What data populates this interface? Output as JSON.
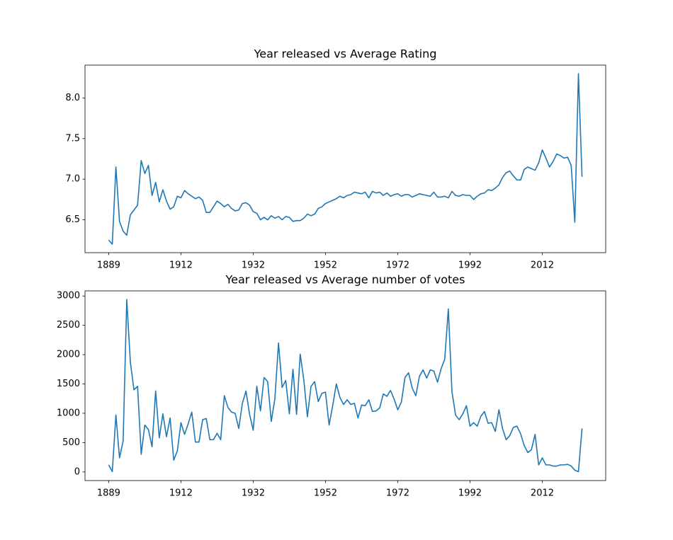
{
  "chart_data": [
    {
      "type": "line",
      "title": "Year released vs Average Rating",
      "categories": [
        "1889",
        null,
        null,
        null,
        null,
        null,
        null,
        null,
        null,
        null,
        null,
        null,
        null,
        null,
        null,
        null,
        null,
        null,
        null,
        null,
        "1912",
        null,
        null,
        null,
        null,
        null,
        null,
        null,
        null,
        null,
        null,
        null,
        null,
        null,
        null,
        null,
        null,
        null,
        null,
        null,
        "1932",
        null,
        null,
        null,
        null,
        null,
        null,
        null,
        null,
        null,
        null,
        null,
        null,
        null,
        null,
        null,
        null,
        null,
        null,
        null,
        "1952",
        null,
        null,
        null,
        null,
        null,
        null,
        null,
        null,
        null,
        null,
        null,
        null,
        null,
        null,
        null,
        null,
        null,
        null,
        null,
        "1972",
        null,
        null,
        null,
        null,
        null,
        null,
        null,
        null,
        null,
        null,
        null,
        null,
        null,
        null,
        null,
        null,
        null,
        null,
        null,
        "1992",
        null,
        null,
        null,
        null,
        null,
        null,
        null,
        null,
        null,
        null,
        null,
        null,
        null,
        null,
        null,
        null,
        null,
        null,
        null,
        "2012",
        null,
        null,
        null,
        null,
        null,
        null,
        null,
        null,
        null,
        null,
        null
      ],
      "values": [
        6.25,
        6.2,
        7.15,
        6.48,
        6.36,
        6.31,
        6.56,
        6.62,
        6.68,
        7.23,
        7.07,
        7.17,
        6.8,
        6.96,
        6.72,
        6.87,
        6.73,
        6.63,
        6.66,
        6.79,
        6.77,
        6.86,
        6.82,
        6.79,
        6.76,
        6.78,
        6.74,
        6.59,
        6.59,
        6.66,
        6.73,
        6.7,
        6.66,
        6.69,
        6.64,
        6.61,
        6.62,
        6.7,
        6.71,
        6.68,
        6.6,
        6.58,
        6.5,
        6.53,
        6.5,
        6.55,
        6.52,
        6.54,
        6.5,
        6.54,
        6.53,
        6.48,
        6.49,
        6.49,
        6.52,
        6.57,
        6.55,
        6.57,
        6.64,
        6.66,
        6.7,
        6.72,
        6.74,
        6.76,
        6.79,
        6.77,
        6.8,
        6.81,
        6.84,
        6.83,
        6.82,
        6.84,
        6.77,
        6.85,
        6.83,
        6.84,
        6.8,
        6.83,
        6.79,
        6.81,
        6.82,
        6.79,
        6.81,
        6.81,
        6.78,
        6.8,
        6.82,
        6.81,
        6.8,
        6.79,
        6.84,
        6.78,
        6.78,
        6.79,
        6.77,
        6.85,
        6.8,
        6.79,
        6.81,
        6.8,
        6.8,
        6.75,
        6.79,
        6.82,
        6.83,
        6.87,
        6.86,
        6.89,
        6.93,
        7.02,
        7.08,
        7.1,
        7.04,
        6.99,
        6.99,
        7.12,
        7.15,
        7.13,
        7.11,
        7.2,
        7.36,
        7.26,
        7.15,
        7.22,
        7.31,
        7.29,
        7.26,
        7.27,
        7.17,
        6.47,
        8.3,
        7.03
      ],
      "color": "#1f77b4",
      "ylim": [
        6.095,
        8.405
      ],
      "yticks": [
        6.5,
        {
          "value": 7,
          "label": "7.0"
        },
        7.5,
        {
          "value": 8,
          "label": "8.0"
        }
      ]
    },
    {
      "type": "line",
      "title": "Year released vs Average number of votes",
      "categories": [
        "1889",
        null,
        null,
        null,
        null,
        null,
        null,
        null,
        null,
        null,
        null,
        null,
        null,
        null,
        null,
        null,
        null,
        null,
        null,
        null,
        "1912",
        null,
        null,
        null,
        null,
        null,
        null,
        null,
        null,
        null,
        null,
        null,
        null,
        null,
        null,
        null,
        null,
        null,
        null,
        null,
        "1932",
        null,
        null,
        null,
        null,
        null,
        null,
        null,
        null,
        null,
        null,
        null,
        null,
        null,
        null,
        null,
        null,
        null,
        null,
        null,
        "1952",
        null,
        null,
        null,
        null,
        null,
        null,
        null,
        null,
        null,
        null,
        null,
        null,
        null,
        null,
        null,
        null,
        null,
        null,
        null,
        "1972",
        null,
        null,
        null,
        null,
        null,
        null,
        null,
        null,
        null,
        null,
        null,
        null,
        null,
        null,
        null,
        null,
        null,
        null,
        null,
        "1992",
        null,
        null,
        null,
        null,
        null,
        null,
        null,
        null,
        null,
        null,
        null,
        null,
        null,
        null,
        null,
        null,
        null,
        null,
        null,
        "2012",
        null,
        null,
        null,
        null,
        null,
        null,
        null,
        null,
        null,
        null,
        null
      ],
      "values": [
        120,
        5,
        970,
        240,
        530,
        2940,
        1870,
        1400,
        1460,
        300,
        800,
        720,
        430,
        1380,
        580,
        990,
        600,
        920,
        200,
        360,
        840,
        640,
        820,
        1020,
        510,
        510,
        890,
        910,
        550,
        550,
        660,
        550,
        1300,
        1100,
        1020,
        1000,
        740,
        1170,
        1380,
        980,
        710,
        1460,
        1040,
        1610,
        1540,
        860,
        1250,
        2200,
        1440,
        1560,
        990,
        1750,
        980,
        2010,
        1570,
        940,
        1460,
        1540,
        1200,
        1340,
        1360,
        800,
        1130,
        1500,
        1270,
        1150,
        1230,
        1150,
        1170,
        920,
        1140,
        1130,
        1230,
        1030,
        1040,
        1090,
        1330,
        1290,
        1390,
        1240,
        1060,
        1190,
        1610,
        1690,
        1430,
        1300,
        1630,
        1740,
        1600,
        1740,
        1720,
        1530,
        1760,
        1920,
        2780,
        1370,
        970,
        890,
        990,
        1130,
        780,
        840,
        780,
        950,
        1030,
        830,
        840,
        690,
        1060,
        740,
        550,
        620,
        760,
        780,
        650,
        450,
        330,
        380,
        640,
        120,
        240,
        120,
        120,
        100,
        100,
        120,
        120,
        130,
        100,
        30,
        5,
        740
      ],
      "color": "#1f77b4",
      "ylim": [
        -147,
        3087
      ],
      "yticks": [
        0,
        500,
        1000,
        1500,
        2000,
        2500,
        3000
      ]
    }
  ]
}
